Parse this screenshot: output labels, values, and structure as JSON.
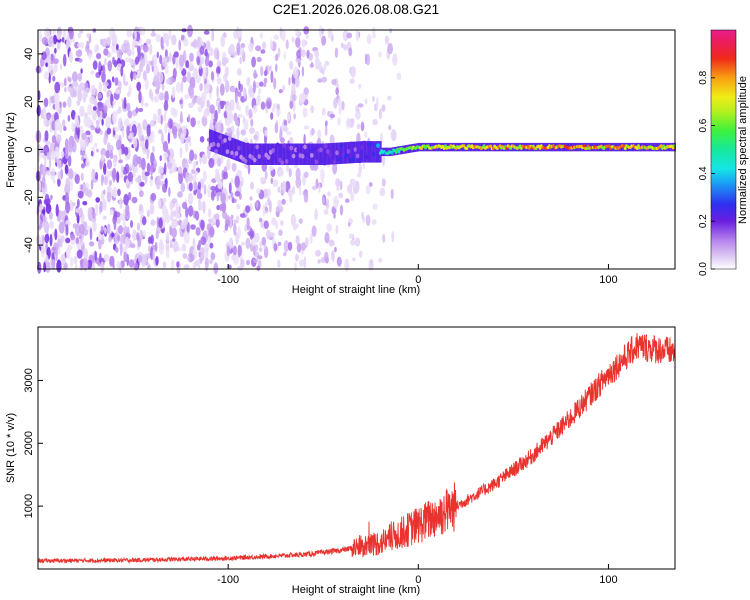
{
  "title": "C2E1.2026.026.08.08.G21",
  "chart_data": [
    {
      "type": "heatmap",
      "xlabel": "Height of straight line (km)",
      "ylabel": "Frequency (Hz)",
      "xlim": [
        -200,
        135
      ],
      "ylim": [
        -50,
        50
      ],
      "xticks": [
        -100,
        0,
        100
      ],
      "yticks": [
        -40,
        -20,
        0,
        20,
        40
      ],
      "colorbar": {
        "label": "Normalized spectral amplitude",
        "range": [
          0.0,
          1.0
        ],
        "ticks": [
          0.0,
          0.2,
          0.4,
          0.6,
          0.8
        ],
        "colormap": "rainbow (white-violet-blue-cyan-green-yellow-red-magenta)"
      },
      "description_data": {
        "noise_region_x": [
          -200,
          -10
        ],
        "ridge": [
          {
            "x": -110,
            "f": 4,
            "amp": 0.15
          },
          {
            "x": -90,
            "f": -2,
            "amp": 0.2
          },
          {
            "x": -70,
            "f": -2,
            "amp": 0.2
          },
          {
            "x": -50,
            "f": -2,
            "amp": 0.22
          },
          {
            "x": -30,
            "f": -1,
            "amp": 0.28
          },
          {
            "x": -15,
            "f": -1,
            "amp": 0.5
          },
          {
            "x": 0,
            "f": 1,
            "amp": 0.7
          },
          {
            "x": 20,
            "f": 1,
            "amp": 0.75
          },
          {
            "x": 50,
            "f": 1,
            "amp": 0.8
          },
          {
            "x": 80,
            "f": 1,
            "amp": 0.85
          },
          {
            "x": 100,
            "f": 1,
            "amp": 0.8
          },
          {
            "x": 135,
            "f": 1,
            "amp": 0.75
          }
        ]
      }
    },
    {
      "type": "line",
      "xlabel": "Height of straight line (km)",
      "ylabel": "SNR (10 * v/v)",
      "xlim": [
        -200,
        135
      ],
      "ylim": [
        0,
        3850
      ],
      "xticks": [
        -100,
        0,
        100
      ],
      "yticks": [
        1000,
        2000,
        3000
      ],
      "color": "#e8332f",
      "trend": [
        {
          "x": -200,
          "y": 130
        },
        {
          "x": -150,
          "y": 140
        },
        {
          "x": -100,
          "y": 170
        },
        {
          "x": -60,
          "y": 230
        },
        {
          "x": -40,
          "y": 300
        },
        {
          "x": -20,
          "y": 420
        },
        {
          "x": 0,
          "y": 700
        },
        {
          "x": 20,
          "y": 1000
        },
        {
          "x": 40,
          "y": 1350
        },
        {
          "x": 60,
          "y": 1800
        },
        {
          "x": 80,
          "y": 2400
        },
        {
          "x": 100,
          "y": 3100
        },
        {
          "x": 115,
          "y": 3550
        },
        {
          "x": 135,
          "y": 3450
        }
      ]
    }
  ]
}
